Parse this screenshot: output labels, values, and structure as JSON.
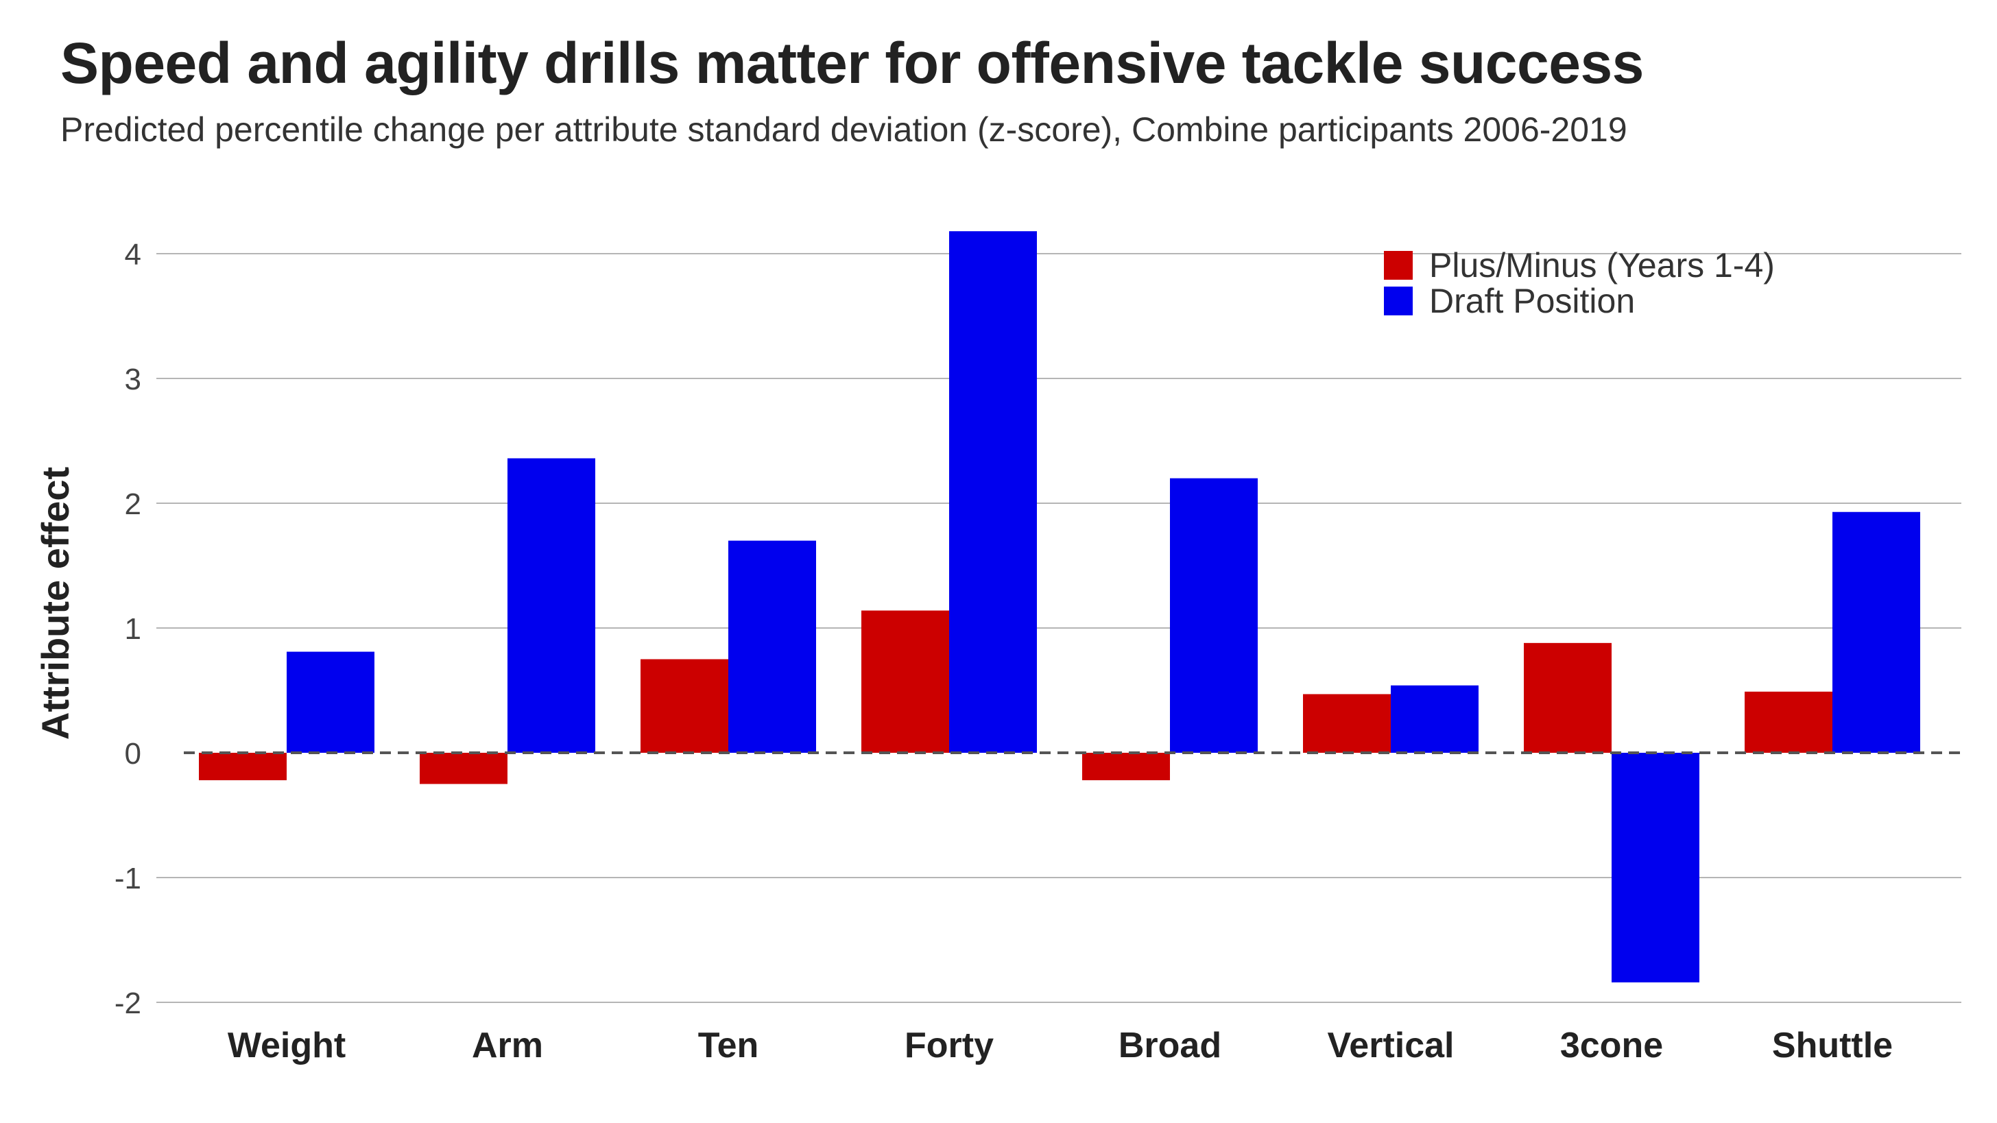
{
  "title": "Speed and agility drills matter for offensive tackle success",
  "subtitle": "Predicted percentile change per attribute standard deviation (z-score), Combine participants 2006-2019",
  "chart_data": {
    "type": "bar",
    "title": "Speed and agility drills matter for offensive tackle success",
    "subtitle": "Predicted percentile change per attribute standard deviation (z-score), Combine participants 2006-2019",
    "xlabel": "",
    "ylabel": "Attribute effect",
    "categories": [
      "Weight",
      "Arm",
      "Ten",
      "Forty",
      "Broad",
      "Vertical",
      "3cone",
      "Shuttle"
    ],
    "series": [
      {
        "name": "Plus/Minus (Years 1-4)",
        "color": "#cc0000",
        "values": [
          -0.22,
          -0.25,
          0.75,
          1.14,
          -0.22,
          0.47,
          0.88,
          0.49
        ]
      },
      {
        "name": "Draft Position",
        "color": "#0000ee",
        "values": [
          0.81,
          2.36,
          1.7,
          4.18,
          2.2,
          0.54,
          -1.84,
          1.93
        ]
      }
    ],
    "ylim": [
      -2,
      4.2
    ],
    "yticks": [
      -2,
      -1,
      0,
      1,
      2,
      3,
      4
    ],
    "grid": true,
    "zero_line": "dashed",
    "legend_position": "top-right"
  }
}
